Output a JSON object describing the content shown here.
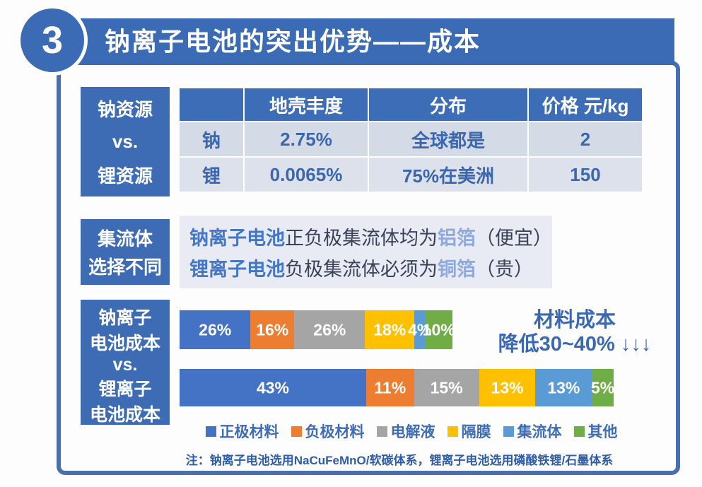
{
  "header": {
    "number": "3",
    "title": "钠离子电池的突出优势——成本"
  },
  "resource_section": {
    "label_lines": [
      "钠资源",
      "vs.",
      "锂资源"
    ],
    "table": {
      "columns": [
        "",
        "地壳丰度",
        "分布",
        "价格 元/kg"
      ],
      "rows": [
        [
          "钠",
          "2.75%",
          "全球都是",
          "2"
        ],
        [
          "锂",
          "0.0065%",
          "75%在美洲",
          "150"
        ]
      ]
    }
  },
  "collector_section": {
    "label_lines": [
      "集流体",
      "选择不同"
    ],
    "lines": [
      {
        "battery": "钠离子电池",
        "body": "正负极集流体均为",
        "foil": "铝箔",
        "note": "（便宜）"
      },
      {
        "battery": "锂离子电池",
        "body": "负极集流体必须为",
        "foil": "铜箔",
        "note": "（贵）"
      }
    ]
  },
  "cost_section": {
    "label_lines": [
      "钠离子",
      "电池成本",
      "vs.",
      "锂离子",
      "电池成本"
    ],
    "annotation_line1": "材料成本",
    "annotation_line2": "降低30~40% ↓↓↓",
    "note": "注：钠离子电池选用NaCuFeMnO/软碳体系，锂离子电池选用磷酸铁锂/石墨体系"
  },
  "chart_data": {
    "type": "bar",
    "orientation": "horizontal-stacked",
    "title": "钠离子电池成本 vs. 锂离子电池成本",
    "categories": [
      "钠离子电池成本",
      "锂离子电池成本"
    ],
    "legend": [
      "正极材料",
      "负极材料",
      "电解液",
      "隔膜",
      "集流体",
      "其他"
    ],
    "colors": [
      "#4472c4",
      "#ed7d31",
      "#a5a5a5",
      "#ffc000",
      "#5b9bd5",
      "#70ad47"
    ],
    "series": [
      {
        "name": "钠离子电池成本",
        "values": [
          26,
          16,
          26,
          18,
          4,
          10
        ],
        "labels": [
          "26%",
          "16%",
          "26%",
          "18%",
          "4%",
          "10%"
        ],
        "relative_total_width": 0.63
      },
      {
        "name": "锂离子电池成本",
        "values": [
          43,
          11,
          15,
          13,
          13,
          5
        ],
        "labels": [
          "43%",
          "11%",
          "15%",
          "13%",
          "13%",
          "5%"
        ],
        "relative_total_width": 1.0
      }
    ],
    "annotation": "材料成本降低30~40% ↓↓↓",
    "legend_position": "bottom",
    "grid": false
  },
  "theme_colors": {
    "primary_blue": "#3b6bb4",
    "frame_border": "#4a6fae",
    "table_row_1": "#d4dae6",
    "table_row_2": "#dce1ec",
    "table_text": "#3a67b0",
    "collector_bg": "#e8ebf3",
    "accent_text": "#3a68b2",
    "foil_highlight": "#8fa9dc"
  }
}
